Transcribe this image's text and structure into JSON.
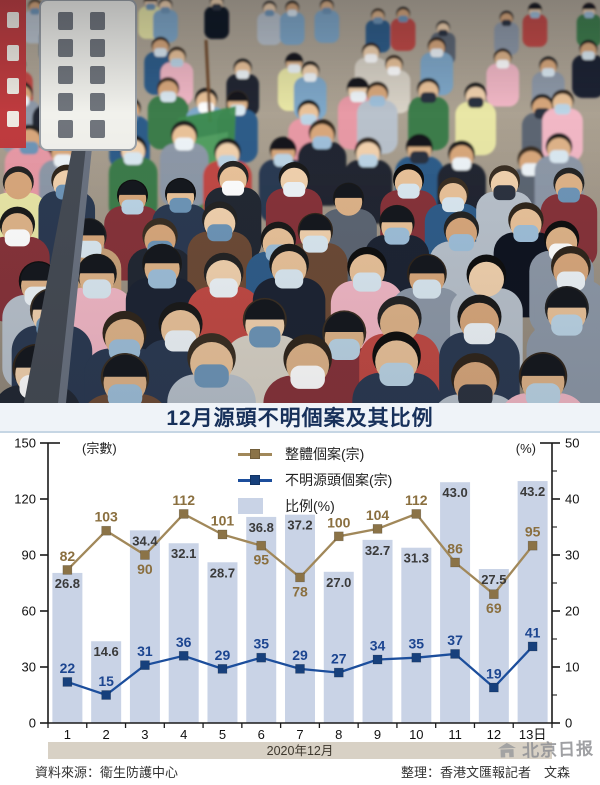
{
  "title": "12月源頭不明個案及其比例",
  "legend": {
    "total": "整體個案(宗)",
    "unknown": "不明源頭個案(宗)",
    "ratio": "比例(%)"
  },
  "chart_data": {
    "type": "bar+line combo",
    "categories": [
      "1",
      "2",
      "3",
      "4",
      "5",
      "6",
      "7",
      "8",
      "9",
      "10",
      "11",
      "12",
      "13日"
    ],
    "series": [
      {
        "name": "整體個案(宗)",
        "type": "line",
        "axis": "left",
        "color": "#a1885a",
        "marker_color": "#8b7347",
        "label_color": "#8a6f3f",
        "values": [
          82,
          103,
          90,
          112,
          101,
          95,
          78,
          100,
          104,
          112,
          86,
          69,
          95
        ],
        "label_below": [
          false,
          false,
          true,
          false,
          false,
          true,
          true,
          false,
          false,
          false,
          false,
          true,
          false
        ]
      },
      {
        "name": "不明源頭個案(宗)",
        "type": "line",
        "axis": "left",
        "color": "#1c4e9c",
        "marker_color": "#17407c",
        "label_color": "#1c4590",
        "values": [
          22,
          15,
          31,
          36,
          29,
          35,
          29,
          27,
          34,
          35,
          37,
          19,
          41
        ]
      },
      {
        "name": "比例(%)",
        "type": "bar",
        "axis": "right",
        "color": "#c9d3e6",
        "label_color": "#3a3a3a",
        "values": [
          26.8,
          14.6,
          34.4,
          32.1,
          28.7,
          36.8,
          37.2,
          27.0,
          32.7,
          31.3,
          43.0,
          27.5,
          43.2
        ]
      }
    ],
    "left_axis": {
      "label": "(宗數)",
      "min": 0,
      "max": 150,
      "ticks": [
        0,
        30,
        60,
        90,
        120,
        150
      ]
    },
    "right_axis": {
      "label": "(%)",
      "min": 0,
      "max": 50,
      "ticks": [
        0,
        10,
        20,
        30,
        40,
        50
      ],
      "minor_ticks": [
        5,
        15,
        25,
        35,
        45
      ]
    },
    "x_band_label": "2020年12月",
    "legend_position": "top-center",
    "grid": false
  },
  "footer": {
    "source": "資料來源：衛生防護中心",
    "credit": "整理：香港文匯報記者　文森"
  },
  "watermark": {
    "text": "北京日报"
  }
}
